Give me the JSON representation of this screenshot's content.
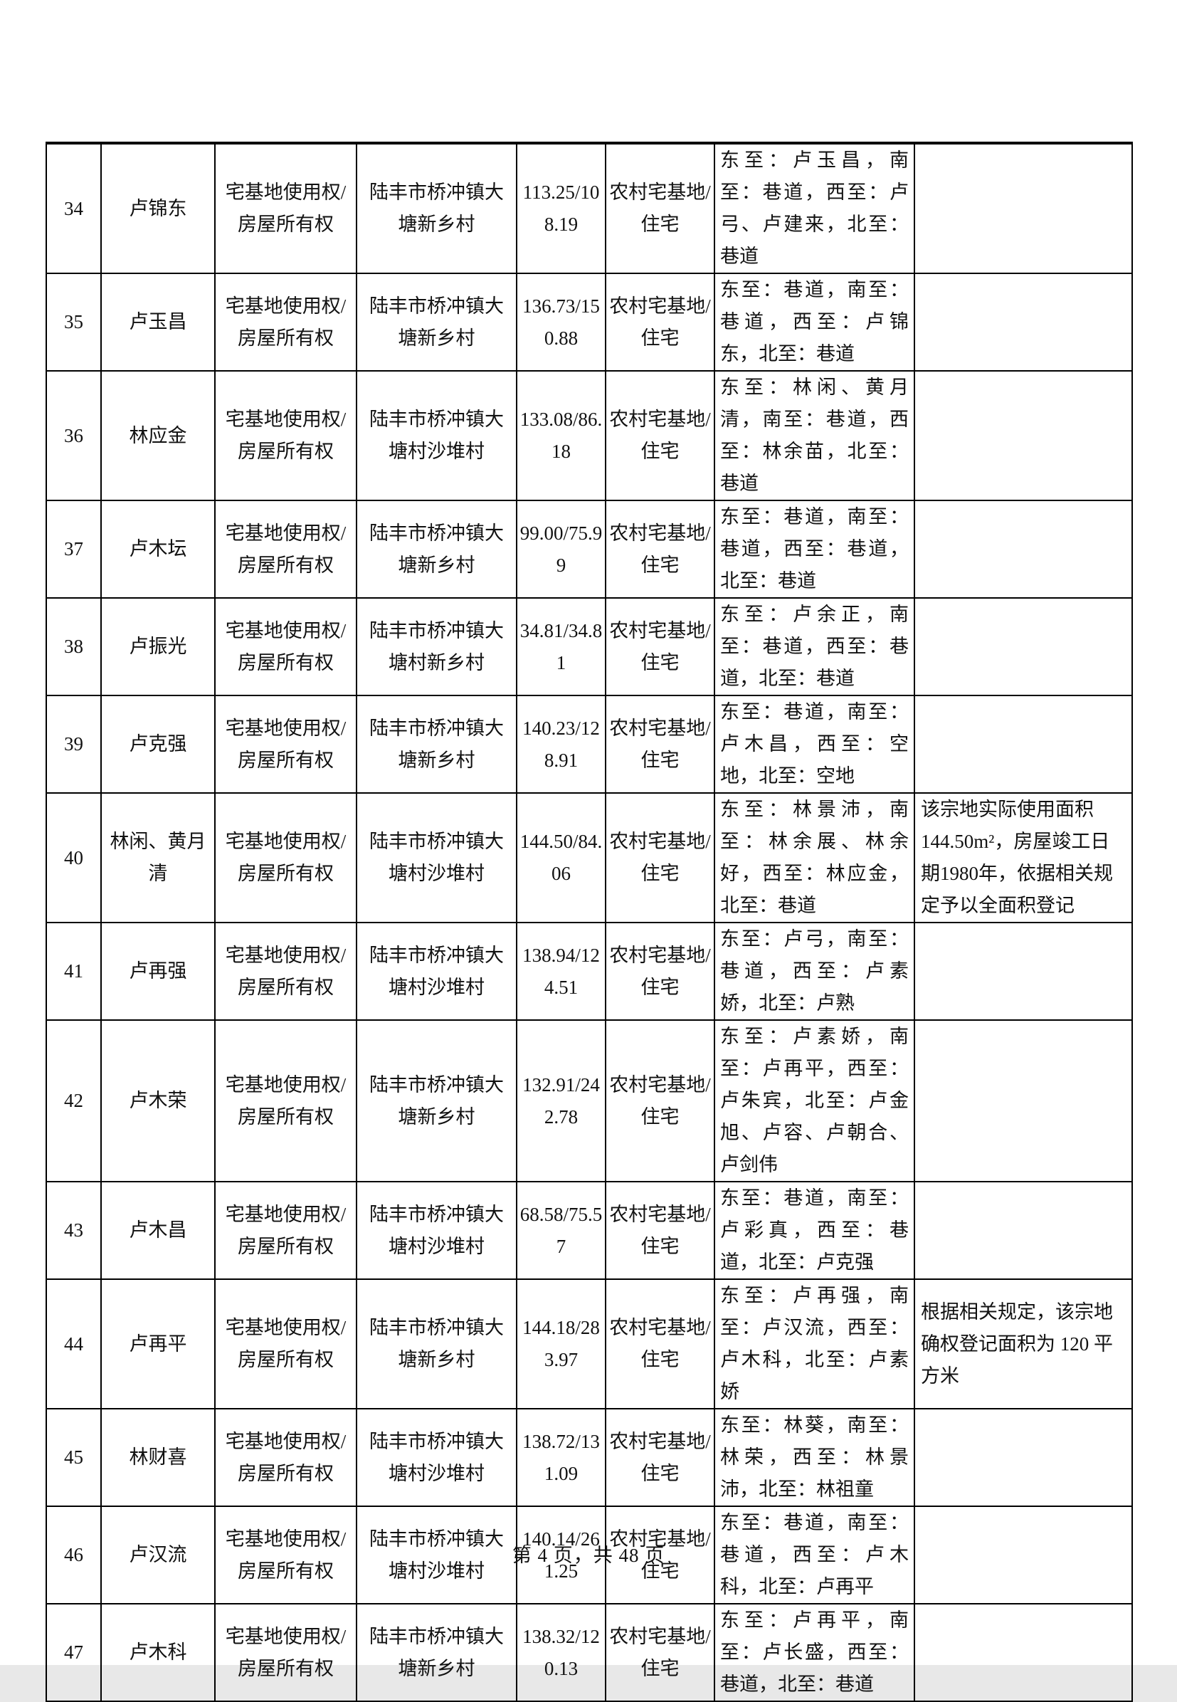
{
  "page": {
    "footer": "第 4 页，共 48 页"
  },
  "table": {
    "rows": [
      [
        "34",
        "卢锦东",
        "宅基地使用权/房屋所有权",
        "陆丰市桥冲镇大塘新乡村",
        "113.25/108.19",
        "农村宅基地/住宅",
        "东至：卢玉昌，南至：巷道，西至：卢弓、卢建来，北至：巷道",
        ""
      ],
      [
        "35",
        "卢玉昌",
        "宅基地使用权/房屋所有权",
        "陆丰市桥冲镇大塘新乡村",
        "136.73/150.88",
        "农村宅基地/住宅",
        "东至：巷道，南至：巷道，西至：卢锦东，北至：巷道",
        ""
      ],
      [
        "36",
        "林应金",
        "宅基地使用权/房屋所有权",
        "陆丰市桥冲镇大塘村沙堆村",
        "133.08/86.18",
        "农村宅基地/住宅",
        "东至：林闲、黄月清，南至：巷道，西至：林余苗，北至：巷道",
        ""
      ],
      [
        "37",
        "卢木坛",
        "宅基地使用权/房屋所有权",
        "陆丰市桥冲镇大塘新乡村",
        "99.00/75.99",
        "农村宅基地/住宅",
        "东至：巷道，南至：巷道，西至：巷道，北至：巷道",
        ""
      ],
      [
        "38",
        "卢振光",
        "宅基地使用权/房屋所有权",
        "陆丰市桥冲镇大塘村新乡村",
        "34.81/34.81",
        "农村宅基地/住宅",
        "东至：卢余正，南至：巷道，西至：巷道，北至：巷道",
        ""
      ],
      [
        "39",
        "卢克强",
        "宅基地使用权/房屋所有权",
        "陆丰市桥冲镇大塘新乡村",
        "140.23/128.91",
        "农村宅基地/住宅",
        "东至：巷道，南至：卢木昌，西至：空地，北至：空地",
        ""
      ],
      [
        "40",
        "林闲、黄月清",
        "宅基地使用权/房屋所有权",
        "陆丰市桥冲镇大塘村沙堆村",
        "144.50/84.06",
        "农村宅基地/住宅",
        "东至：林景沛，南至：林余展、林余好，西至：林应金，北至：巷道",
        "该宗地实际使用面积144.50m²，房屋竣工日期1980年，依据相关规定予以全面积登记"
      ],
      [
        "41",
        "卢再强",
        "宅基地使用权/房屋所有权",
        "陆丰市桥冲镇大塘村沙堆村",
        "138.94/124.51",
        "农村宅基地/住宅",
        "东至：卢弓，南至：巷道，西至：卢素娇，北至：卢熟",
        ""
      ],
      [
        "42",
        "卢木荣",
        "宅基地使用权/房屋所有权",
        "陆丰市桥冲镇大塘新乡村",
        "132.91/242.78",
        "农村宅基地/住宅",
        "东至：卢素娇，南至：卢再平，西至：卢朱宾，北至：卢金旭、卢容、卢朝合、卢剑伟",
        ""
      ],
      [
        "43",
        "卢木昌",
        "宅基地使用权/房屋所有权",
        "陆丰市桥冲镇大塘村沙堆村",
        "68.58/75.57",
        "农村宅基地/住宅",
        "东至：巷道，南至：卢彩真，西至：巷道，北至：卢克强",
        ""
      ],
      [
        "44",
        "卢再平",
        "宅基地使用权/房屋所有权",
        "陆丰市桥冲镇大塘新乡村",
        "144.18/283.97",
        "农村宅基地/住宅",
        "东至：卢再强，南至：卢汉流，西至：卢木科，北至：卢素娇",
        "根据相关规定，该宗地确权登记面积为 120 平方米"
      ],
      [
        "45",
        "林财喜",
        "宅基地使用权/房屋所有权",
        "陆丰市桥冲镇大塘村沙堆村",
        "138.72/131.09",
        "农村宅基地/住宅",
        "东至：林葵，南至：林荣，西至：林景沛，北至：林祖童",
        ""
      ],
      [
        "46",
        "卢汉流",
        "宅基地使用权/房屋所有权",
        "陆丰市桥冲镇大塘村沙堆村",
        "140.14/261.25",
        "农村宅基地/住宅",
        "东至：巷道，南至：巷道，西至：卢木科，北至：卢再平",
        ""
      ],
      [
        "47",
        "卢木科",
        "宅基地使用权/房屋所有权",
        "陆丰市桥冲镇大塘新乡村",
        "138.32/120.13",
        "农村宅基地/住宅",
        "东至：卢再平，南至：卢长盛，西至：巷道，北至：巷道",
        ""
      ]
    ]
  }
}
